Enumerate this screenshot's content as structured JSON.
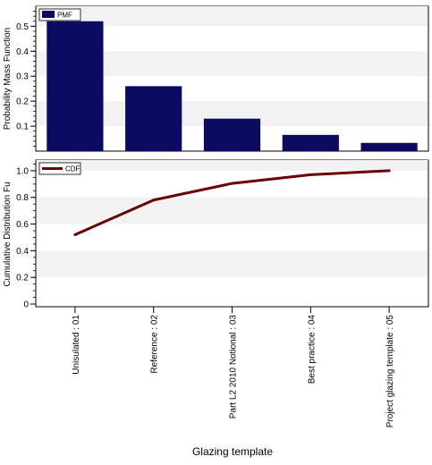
{
  "chart_data": [
    {
      "type": "bar",
      "ylabel": "Probability Mass Function",
      "categories": [
        "Unisulated : 01",
        "Reference : 02",
        "Part L2 2010 Notional : 03",
        "Best practice : 04",
        "Project glazing template : 05"
      ],
      "series": [
        {
          "name": "PMF",
          "values": [
            0.52,
            0.26,
            0.13,
            0.065,
            0.033
          ]
        }
      ],
      "ylim": [
        0,
        0.58
      ],
      "yticks": [
        "0.1",
        "0.2",
        "0.3",
        "0.4",
        "0.5"
      ],
      "legend_position": "top-left",
      "grid": "horizontal bands",
      "colors": {
        "bar": "#0a0a5e",
        "band": "#f2f2f2"
      }
    },
    {
      "type": "line",
      "ylabel": "Cumulative Distribution Fu",
      "xlabel": "Glazing template",
      "categories": [
        "Unisulated : 01",
        "Reference : 02",
        "Part L2 2010 Notional : 03",
        "Best practice : 04",
        "Project glazing template : 05"
      ],
      "series": [
        {
          "name": "CDF",
          "values": [
            0.52,
            0.78,
            0.905,
            0.97,
            1.0
          ]
        }
      ],
      "ylim": [
        0,
        1.08
      ],
      "yticks": [
        "0",
        "0.2",
        "0.4",
        "0.6",
        "0.8",
        "1.0"
      ],
      "legend_position": "top-left",
      "grid": "horizontal bands",
      "colors": {
        "line": "#6b0000",
        "band": "#f2f2f2"
      }
    }
  ]
}
